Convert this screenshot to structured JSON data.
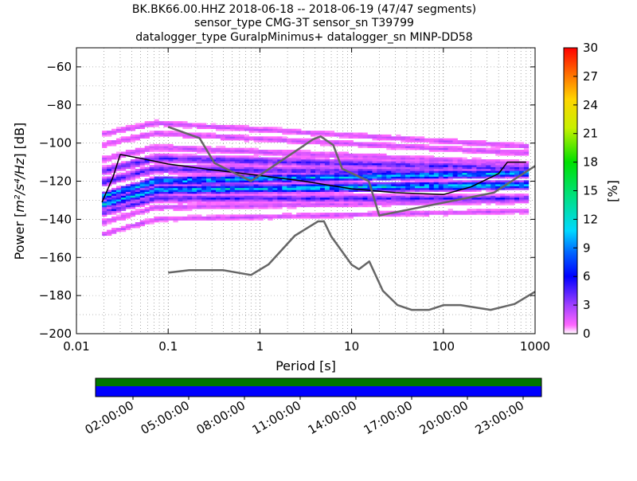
{
  "title": {
    "line1": "BK.BK66.00.HHZ   2018-06-18 -- 2018-06-19  (47/47 segments)",
    "line2": "sensor_type CMG-3T sensor_sn T39799",
    "line3": "datalogger_type GuralpMinimus+ datalogger_sn MINP-DD58"
  },
  "chart_data": {
    "type": "heatmap",
    "x_scale": "log",
    "xlabel": "Period [s]",
    "ylabel_main": "Power [",
    "ylabel_math": "m²/s⁴/Hz",
    "ylabel_tail": "] [dB]",
    "xlim": [
      0.01,
      1000
    ],
    "ylim": [
      -200,
      -50
    ],
    "xticks": [
      {
        "v": 0.01,
        "label": "0.01"
      },
      {
        "v": 0.1,
        "label": "0.1"
      },
      {
        "v": 1,
        "label": "1"
      },
      {
        "v": 10,
        "label": "10"
      },
      {
        "v": 100,
        "label": "100"
      },
      {
        "v": 1000,
        "label": "1000"
      }
    ],
    "yticks": [
      {
        "v": -60,
        "label": "−60"
      },
      {
        "v": -80,
        "label": "−80"
      },
      {
        "v": -100,
        "label": "−100"
      },
      {
        "v": -120,
        "label": "−120"
      },
      {
        "v": -140,
        "label": "−140"
      },
      {
        "v": -160,
        "label": "−160"
      },
      {
        "v": -180,
        "label": "−180"
      },
      {
        "v": -200,
        "label": "−200"
      }
    ],
    "grid": true,
    "colorbar": {
      "label": "[%]",
      "range": [
        0,
        30
      ],
      "ticks": [
        "0",
        "3",
        "6",
        "9",
        "12",
        "15",
        "18",
        "21",
        "24",
        "27",
        "30"
      ]
    },
    "nhnm": [
      [
        0.1,
        -168
      ],
      [
        0.17,
        -166.7
      ],
      [
        0.4,
        -166.7
      ],
      [
        0.8,
        -169.2
      ],
      [
        1.24,
        -163.7
      ],
      [
        2.4,
        -148.6
      ],
      [
        4.3,
        -141.1
      ],
      [
        5,
        -141.1
      ],
      [
        6,
        -149
      ],
      [
        10,
        -163.8
      ],
      [
        12,
        -166.2
      ],
      [
        15.6,
        -162.1
      ],
      [
        21.9,
        -177.5
      ],
      [
        31.6,
        -185
      ],
      [
        45,
        -187.5
      ],
      [
        70,
        -187.5
      ],
      [
        101,
        -185
      ],
      [
        154,
        -185
      ],
      [
        328,
        -187.5
      ],
      [
        600,
        -184.4
      ],
      [
        1000,
        -178
      ]
    ],
    "nlnm": [
      [
        0.1,
        -91.5
      ],
      [
        0.22,
        -97.4
      ],
      [
        0.32,
        -110.5
      ],
      [
        0.8,
        -120
      ],
      [
        3.8,
        -98
      ],
      [
        4.6,
        -96.5
      ],
      [
        6.3,
        -101
      ],
      [
        7.9,
        -113.5
      ],
      [
        15.4,
        -120
      ],
      [
        20,
        -138
      ],
      [
        354.8,
        -126
      ],
      [
        1000,
        -112
      ]
    ],
    "median": [
      [
        0.019,
        -131
      ],
      [
        0.025,
        -118
      ],
      [
        0.03,
        -106
      ],
      [
        0.05,
        -108
      ],
      [
        0.1,
        -111
      ],
      [
        0.3,
        -114
      ],
      [
        1,
        -117
      ],
      [
        3,
        -120
      ],
      [
        10,
        -124
      ],
      [
        30,
        -126
      ],
      [
        100,
        -127
      ],
      [
        200,
        -123
      ],
      [
        400,
        -116
      ],
      [
        500,
        -110
      ],
      [
        800,
        -110
      ]
    ],
    "bands": [
      [
        -119,
        5,
        2.6
      ],
      [
        -124,
        3,
        3.0
      ],
      [
        -114,
        -3,
        2.8
      ],
      [
        -109,
        -6,
        2.6
      ],
      [
        -129,
        0,
        2.2
      ],
      [
        -104,
        -10,
        2.0
      ],
      [
        -133,
        4,
        1.7
      ],
      [
        -97,
        -12,
        1.6
      ],
      [
        -92,
        -14,
        1.4
      ],
      [
        -139,
        5,
        1.3
      ]
    ]
  },
  "time_axis": {
    "labels": [
      "02:00:00",
      "05:00:00",
      "08:00:00",
      "11:00:00",
      "14:00:00",
      "17:00:00",
      "20:00:00",
      "23:00:00"
    ],
    "colors": {
      "upper": "#007700",
      "lower": "#0000ff"
    }
  }
}
